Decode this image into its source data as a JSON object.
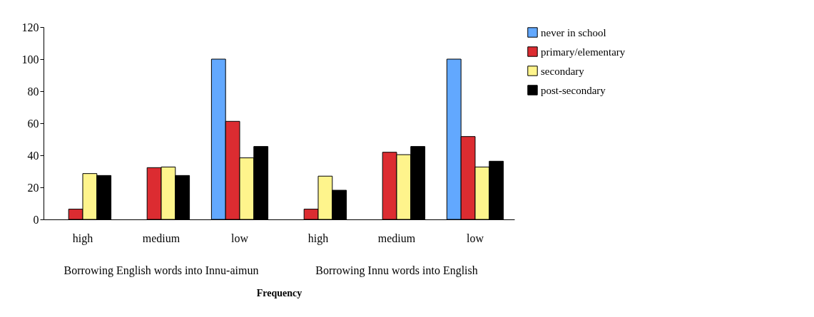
{
  "chart_data": {
    "type": "bar",
    "xlabel": "Frequency",
    "categories": [
      "high",
      "medium",
      "low",
      "high",
      "medium",
      "low"
    ],
    "annotations": [
      "Borrowing English words into Innu-aimun",
      "Borrowing Innu words into English"
    ],
    "series": [
      {
        "name": "never in school",
        "color": "#62a8fe",
        "values": [
          null,
          null,
          100,
          null,
          null,
          100
        ]
      },
      {
        "name": "primary/elementary",
        "color": "#dc2c31",
        "values": [
          6.4,
          32.3,
          61.2,
          6.4,
          41.9,
          51.7
        ]
      },
      {
        "name": "secondary",
        "color": "#fef48c",
        "values": [
          28.6,
          32.7,
          38.4,
          27,
          40.4,
          32.7
        ]
      },
      {
        "name": "post-secondary",
        "color": "#000000",
        "values": [
          27.4,
          27.4,
          45.5,
          18.2,
          45.5,
          36.3
        ]
      }
    ],
    "ylim": [
      0,
      120
    ],
    "yticks": [
      0,
      20,
      40,
      60,
      80,
      100,
      120
    ],
    "grid": false,
    "legend": "right"
  }
}
